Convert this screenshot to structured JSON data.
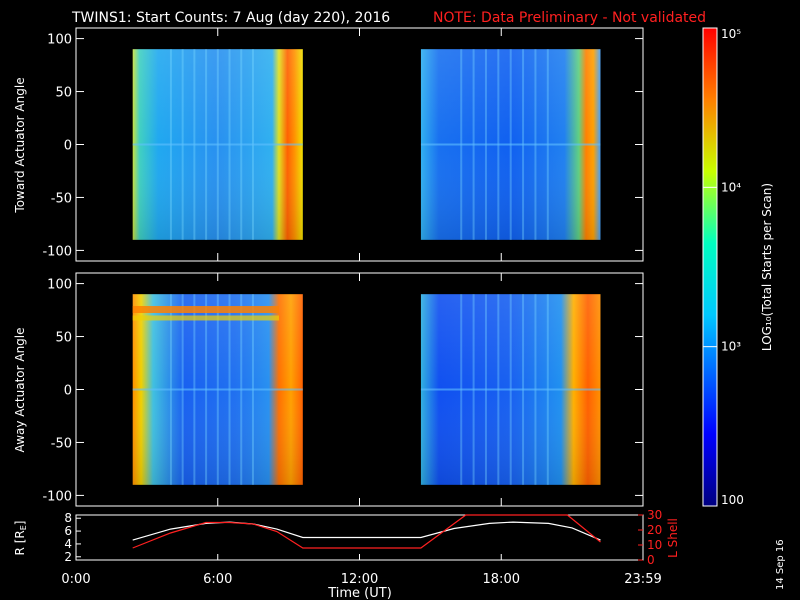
{
  "header": {
    "title": "TWINS1: Start Counts:  7 Aug (day 220), 2016",
    "note": "NOTE: Data Preliminary - Not validated"
  },
  "stamp": "14 Sep 16",
  "colorbar": {
    "label": "LOG₁₀(Total Starts per Scan)",
    "ticks": [
      {
        "value": 100,
        "label": "100"
      },
      {
        "value": 1000,
        "label": "10³"
      },
      {
        "value": 10000,
        "label": "10⁴"
      },
      {
        "value": 100000,
        "label": "10⁵"
      }
    ],
    "range": [
      100,
      100000
    ],
    "scale": "log"
  },
  "colors": {
    "background": "#000000",
    "axes": "#ffffff",
    "note": "#ff2020",
    "r_trace": "#ffffff",
    "lshell_trace": "#ff2020"
  },
  "chart_data": [
    {
      "type": "heatmap",
      "ylabel": "Toward Actuator Angle",
      "ylim": [
        -110,
        110
      ],
      "yticks": [
        100,
        50,
        0,
        -50,
        -100
      ],
      "xlim": [
        0,
        24
      ],
      "xticks": [
        0,
        6,
        12,
        18,
        24
      ],
      "data_extent": {
        "angle": [
          -90,
          90
        ]
      },
      "segments": [
        {
          "start_hour": 2.4,
          "end_hour": 9.6
        },
        {
          "start_hour": 14.6,
          "end_hour": 22.2
        }
      ]
    },
    {
      "type": "heatmap",
      "ylabel": "Away Actuator Angle",
      "ylim": [
        -110,
        110
      ],
      "yticks": [
        100,
        50,
        0,
        -50,
        -100
      ],
      "xlim": [
        0,
        24
      ],
      "xticks": [
        0,
        6,
        12,
        18,
        24
      ],
      "data_extent": {
        "angle": [
          -90,
          90
        ]
      },
      "segments": [
        {
          "start_hour": 2.4,
          "end_hour": 9.6
        },
        {
          "start_hour": 14.6,
          "end_hour": 22.2
        }
      ]
    },
    {
      "type": "line",
      "xlabel": "Time (UT)",
      "x_tick_labels": [
        "0:00",
        "6:00",
        "12:00",
        "18:00",
        "23:59"
      ],
      "xticks": [
        0,
        6,
        12,
        18,
        24
      ],
      "xlim": [
        0,
        24
      ],
      "ylabel_left": "R [R",
      "ylabel_left_sub": "E",
      "ylabel_left_end": "]",
      "yticks_left": [
        2,
        4,
        6,
        8
      ],
      "ylim_left": [
        1.5,
        8.5
      ],
      "ylabel_right": "L Shell",
      "yticks_right": [
        0,
        10,
        20,
        30
      ],
      "ylim_right": [
        0,
        30
      ],
      "series": [
        {
          "axis": "left",
          "x": [
            2.4,
            4,
            5.5,
            6.5,
            7.5,
            8.5,
            9.6,
            12,
            14.6,
            16,
            17.5,
            18.5,
            20,
            21,
            22.2
          ],
          "values": [
            4.6,
            6.3,
            7.2,
            7.4,
            7.1,
            6.3,
            5.0,
            5.0,
            5.0,
            6.4,
            7.2,
            7.4,
            7.2,
            6.5,
            4.6
          ]
        },
        {
          "axis": "right",
          "x": [
            2.4,
            4,
            5.5,
            6.5,
            7.5,
            8.5,
            9.6,
            12,
            14.6,
            16.5,
            20.8,
            22.2
          ],
          "values": [
            8,
            18,
            25,
            25,
            24,
            19,
            8,
            8,
            8,
            30,
            30,
            12
          ]
        }
      ]
    }
  ]
}
